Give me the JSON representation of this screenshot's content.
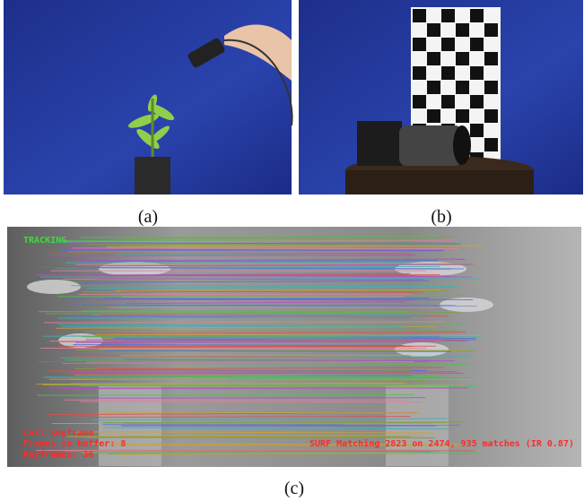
{
  "panels": [
    {
      "label": "(a)"
    },
    {
      "label": "(b)"
    },
    {
      "label": "(c)",
      "overlay": {
        "status": "TRACKING",
        "info": [
          "Last keyframe",
          "Frames in buffer: 8",
          "Keyframes: 36"
        ],
        "matching": "SURF Matching 2823 on 2474, 935 matches (IR 0.87)"
      }
    }
  ]
}
